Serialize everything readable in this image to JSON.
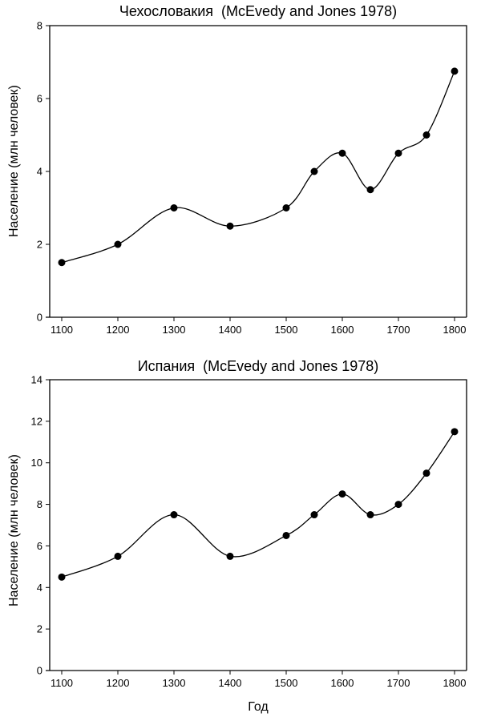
{
  "chart_data": [
    {
      "type": "line",
      "title": "Чехословакия  (McEvedy and Jones 1978)",
      "xlabel": "",
      "ylabel": "Население (млн человек)",
      "x": [
        1100,
        1200,
        1300,
        1400,
        1500,
        1550,
        1600,
        1650,
        1700,
        1750,
        1800
      ],
      "series": [
        {
          "name": "Чехословакия",
          "values": [
            1.5,
            2.0,
            3.0,
            2.5,
            3.0,
            4.0,
            4.5,
            3.5,
            4.5,
            5.0,
            6.75
          ]
        }
      ],
      "xticks": [
        1100,
        1200,
        1300,
        1400,
        1500,
        1600,
        1700,
        1800
      ],
      "yticks": [
        0,
        2,
        4,
        6,
        8
      ],
      "xlim": [
        1080,
        1822
      ],
      "ylim": [
        0,
        8
      ],
      "grid": false,
      "marker": "filled-circle",
      "line_style": "smooth-spline",
      "colors": {
        "line": "#000000",
        "marker": "#000000",
        "frame": "#000000"
      }
    },
    {
      "type": "line",
      "title": "Испания  (McEvedy and Jones 1978)",
      "xlabel": "Год",
      "ylabel": "Население (млн человек)",
      "x": [
        1100,
        1200,
        1300,
        1400,
        1500,
        1550,
        1600,
        1650,
        1700,
        1750,
        1800
      ],
      "series": [
        {
          "name": "Испания",
          "values": [
            4.5,
            5.5,
            7.5,
            5.5,
            6.5,
            7.5,
            8.5,
            7.5,
            8.0,
            9.5,
            11.5
          ]
        }
      ],
      "xticks": [
        1100,
        1200,
        1300,
        1400,
        1500,
        1600,
        1700,
        1800
      ],
      "yticks": [
        0,
        2,
        4,
        6,
        8,
        10,
        12,
        14
      ],
      "xlim": [
        1080,
        1822
      ],
      "ylim": [
        0,
        14
      ],
      "grid": false,
      "marker": "filled-circle",
      "line_style": "smooth-spline",
      "colors": {
        "line": "#000000",
        "marker": "#000000",
        "frame": "#000000"
      }
    }
  ]
}
